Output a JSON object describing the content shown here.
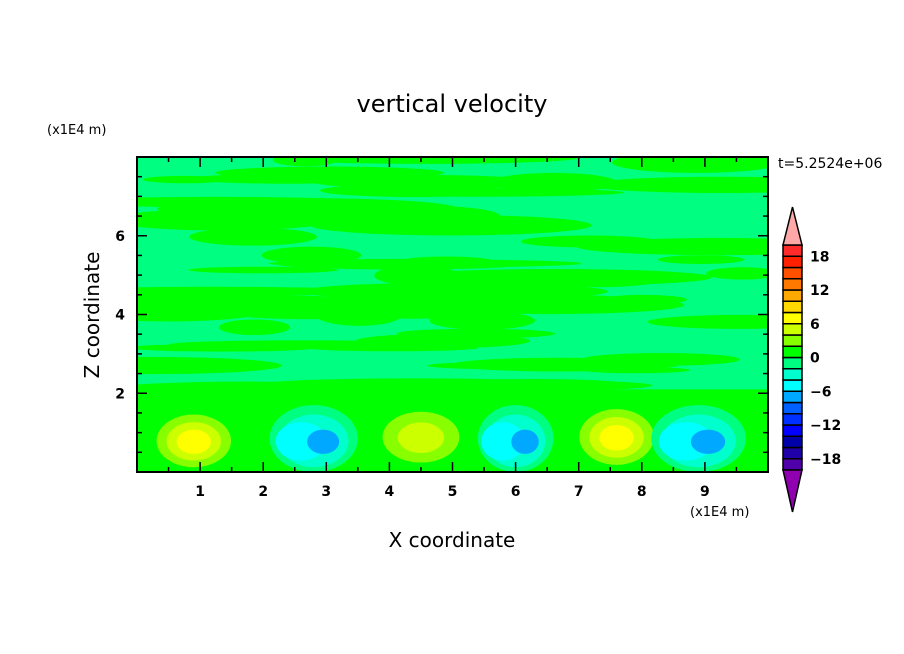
{
  "chart_data": {
    "type": "heatmap",
    "title": "vertical velocity",
    "xlabel": "X coordinate",
    "ylabel": "Z coordinate",
    "x_unit": "(x1E4 m)",
    "y_unit": "(x1E4 m)",
    "time_label": "t=5.2524e+06",
    "xlim": [
      0,
      10
    ],
    "ylim": [
      0,
      8
    ],
    "xticks": [
      1,
      2,
      3,
      4,
      5,
      6,
      7,
      8,
      9
    ],
    "yticks": [
      2,
      4,
      6
    ],
    "colorbar": {
      "levels": [
        -20,
        -18,
        -16,
        -14,
        -12,
        -10,
        -8,
        -6,
        -4,
        -2,
        0,
        2,
        4,
        6,
        8,
        10,
        12,
        14,
        16,
        18,
        20
      ],
      "tick_labels": [
        18,
        12,
        6,
        0,
        -6,
        -12,
        -18
      ],
      "colors": [
        "#5000a8",
        "#2000a8",
        "#0000a8",
        "#0000ff",
        "#0030ff",
        "#0060ff",
        "#00a8ff",
        "#00ffff",
        "#00ffcc",
        "#00ff80",
        "#00ff00",
        "#88ff00",
        "#ccff00",
        "#ffff00",
        "#ffd800",
        "#ffa800",
        "#ff7800",
        "#ff5000",
        "#ff2000",
        "#ff2a2a"
      ],
      "over_color": "#ffa8a8",
      "under_color": "#9000b0"
    },
    "features": [
      {
        "kind": "updraft",
        "x": 0.9,
        "z": 0.8,
        "peak": 8,
        "half_width": 0.75,
        "height": 1.7
      },
      {
        "kind": "downdraft",
        "x": 2.8,
        "z": 0.8,
        "peak": -8,
        "half_width": 0.7,
        "height": 1.7
      },
      {
        "kind": "updraft",
        "x": 4.5,
        "z": 0.9,
        "peak": 6,
        "half_width": 0.85,
        "height": 1.8
      },
      {
        "kind": "downdraft",
        "x": 6.0,
        "z": 0.8,
        "peak": -8,
        "half_width": 0.6,
        "height": 1.7
      },
      {
        "kind": "updraft",
        "x": 7.6,
        "z": 0.9,
        "peak": 8,
        "half_width": 0.75,
        "height": 1.8
      },
      {
        "kind": "downdraft",
        "x": 8.9,
        "z": 0.8,
        "peak": -8,
        "half_width": 0.75,
        "height": 1.7
      }
    ],
    "background": {
      "z_range": [
        2,
        8
      ],
      "values": [
        -2,
        2
      ]
    }
  }
}
